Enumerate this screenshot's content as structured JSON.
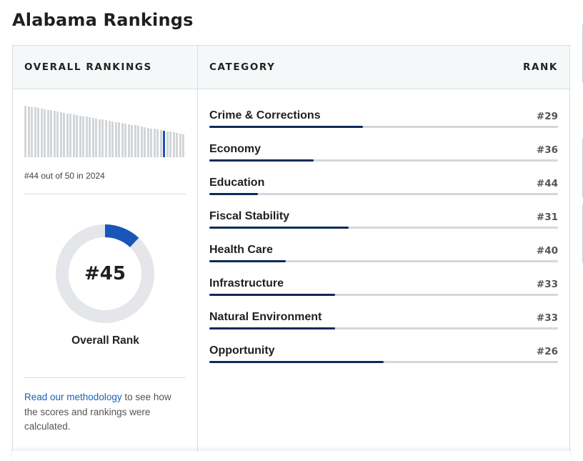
{
  "page": {
    "title": "Alabama Rankings"
  },
  "overall": {
    "header": "OVERALL RANKINGS",
    "history_caption": "#44 out of 50 in 2024",
    "history_current_rank": 44,
    "history_total": 50,
    "rank_value": "#45",
    "rank_label": "Overall Rank",
    "rank_number": 45,
    "methodology_link": "Read our methodology",
    "methodology_text": " to see how the scores and rankings were calculated.",
    "colors": {
      "accent": "#1a56b8",
      "ring": "#e4e6e9",
      "bar": "#d3d6d9",
      "fill": "#0e2a5c"
    }
  },
  "categories": {
    "header_category": "CATEGORY",
    "header_rank": "RANK",
    "items": [
      {
        "name": "Crime & Corrections",
        "rank": "#29",
        "rank_number": 29
      },
      {
        "name": "Economy",
        "rank": "#36",
        "rank_number": 36
      },
      {
        "name": "Education",
        "rank": "#44",
        "rank_number": 44
      },
      {
        "name": "Fiscal Stability",
        "rank": "#31",
        "rank_number": 31
      },
      {
        "name": "Health Care",
        "rank": "#40",
        "rank_number": 40
      },
      {
        "name": "Infrastructure",
        "rank": "#33",
        "rank_number": 33
      },
      {
        "name": "Natural Environment",
        "rank": "#33",
        "rank_number": 33
      },
      {
        "name": "Opportunity",
        "rank": "#26",
        "rank_number": 26
      }
    ]
  }
}
